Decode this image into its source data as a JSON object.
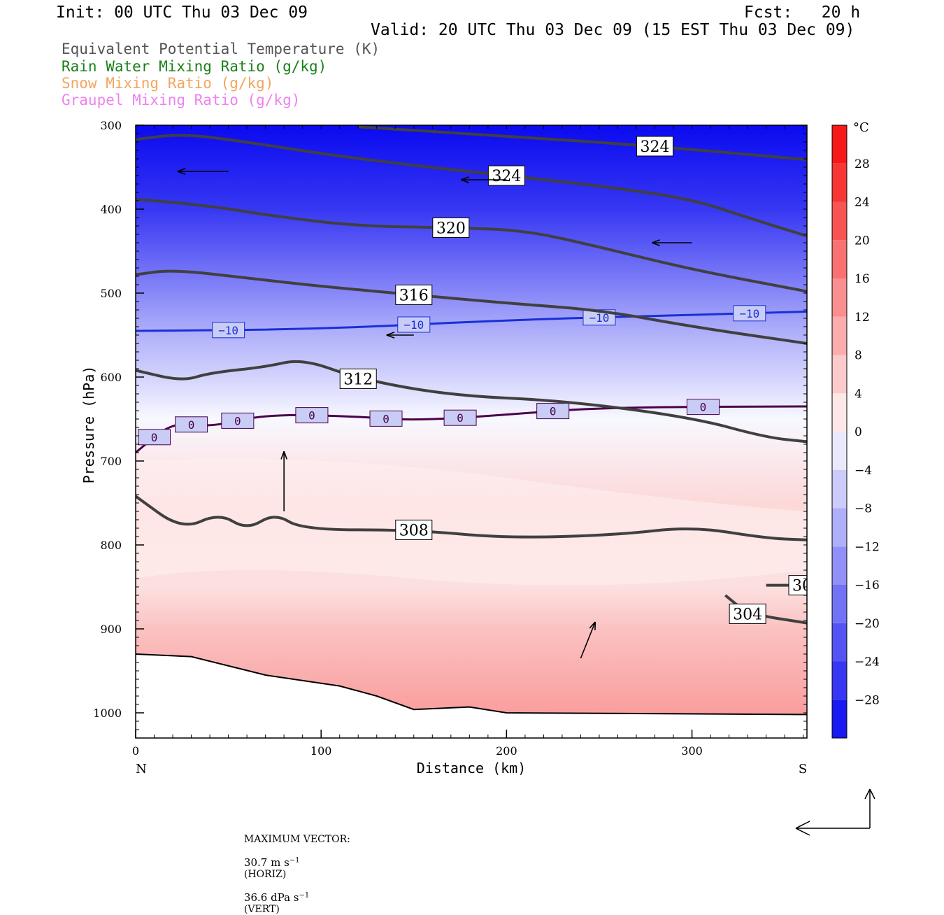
{
  "header": {
    "init": "Init: 00 UTC Thu 03 Dec 09",
    "fcst": "Fcst:   20 h",
    "valid": "Valid: 20 UTC Thu 03 Dec 09 (15 EST Thu 03 Dec 09)"
  },
  "legend": [
    {
      "label": "Equivalent Potential Temperature (K)",
      "color": "#555555"
    },
    {
      "label": "Rain Water Mixing Ratio (g/kg)",
      "color": "#1a7f1a"
    },
    {
      "label": "Snow Mixing Ratio (g/kg)",
      "color": "#f4a460"
    },
    {
      "label": "Graupel Mixing Ratio (g/kg)",
      "color": "#ee82ee"
    }
  ],
  "chart_data": {
    "type": "heatmap",
    "xlabel": "Distance (km)",
    "ylabel": "Pressure (hPa)",
    "xlim": [
      0,
      362
    ],
    "ylim": [
      1030,
      300
    ],
    "xticks": [
      "0",
      "100",
      "200",
      "300"
    ],
    "xtick_values": [
      0,
      100,
      200,
      300
    ],
    "yticks": [
      "300",
      "400",
      "500",
      "600",
      "700",
      "800",
      "900",
      "1000"
    ],
    "ytick_values": [
      300,
      400,
      500,
      600,
      700,
      800,
      900,
      1000
    ],
    "x_end_labels": {
      "left": "N",
      "right": "S"
    },
    "colorbar": {
      "unit": "°C",
      "labels": [
        "28",
        "24",
        "20",
        "16",
        "12",
        "8",
        "4",
        "0",
        "−4",
        "−8",
        "−12",
        "−16",
        "−20",
        "−24",
        "−28"
      ],
      "values": [
        28,
        24,
        20,
        16,
        12,
        8,
        4,
        0,
        -4,
        -8,
        -12,
        -16,
        -20,
        -24,
        -28
      ],
      "range": [
        -32,
        32
      ]
    },
    "temperature_field_approx": [
      {
        "pressure": 300,
        "temp_c": -32
      },
      {
        "pressure": 400,
        "temp_c": -26
      },
      {
        "pressure": 500,
        "temp_c": -15
      },
      {
        "pressure": 545,
        "temp_c": -10
      },
      {
        "pressure": 600,
        "temp_c": -5
      },
      {
        "pressure": 650,
        "temp_c": 0
      },
      {
        "pressure": 750,
        "temp_c": 4
      },
      {
        "pressure": 850,
        "temp_c": 3
      },
      {
        "pressure": 900,
        "temp_c": 7
      },
      {
        "pressure": 1000,
        "temp_c": 12
      }
    ],
    "theta_e_contours": [
      {
        "label": "324",
        "points": [
          [
            0,
            317
          ],
          [
            25,
            310
          ],
          [
            60,
            320
          ],
          [
            100,
            334
          ],
          [
            150,
            348
          ],
          [
            200,
            360
          ],
          [
            250,
            372
          ],
          [
            300,
            388
          ],
          [
            330,
            410
          ],
          [
            362,
            432
          ]
        ]
      },
      {
        "label": "324",
        "points": [
          [
            120,
            302
          ],
          [
            200,
            313
          ],
          [
            280,
            325
          ],
          [
            362,
            341
          ]
        ]
      },
      {
        "label": "320",
        "points": [
          [
            0,
            388
          ],
          [
            40,
            396
          ],
          [
            80,
            410
          ],
          [
            120,
            420
          ],
          [
            170,
            422
          ],
          [
            210,
            425
          ],
          [
            250,
            445
          ],
          [
            300,
            472
          ],
          [
            362,
            498
          ]
        ]
      },
      {
        "label": "316",
        "points": [
          [
            0,
            478
          ],
          [
            20,
            472
          ],
          [
            60,
            482
          ],
          [
            100,
            492
          ],
          [
            150,
            502
          ],
          [
            200,
            512
          ],
          [
            250,
            520
          ],
          [
            300,
            540
          ],
          [
            362,
            560
          ]
        ]
      },
      {
        "label": "312",
        "points": [
          [
            0,
            592
          ],
          [
            25,
            605
          ],
          [
            40,
            595
          ],
          [
            70,
            588
          ],
          [
            90,
            578
          ],
          [
            120,
            602
          ],
          [
            170,
            622
          ],
          [
            230,
            628
          ],
          [
            300,
            648
          ],
          [
            340,
            672
          ],
          [
            362,
            677
          ]
        ]
      },
      {
        "label": "308",
        "points": [
          [
            0,
            742
          ],
          [
            25,
            782
          ],
          [
            45,
            762
          ],
          [
            60,
            782
          ],
          [
            75,
            762
          ],
          [
            90,
            782
          ],
          [
            150,
            782
          ],
          [
            200,
            792
          ],
          [
            260,
            788
          ],
          [
            300,
            778
          ],
          [
            340,
            792
          ],
          [
            362,
            794
          ]
        ]
      },
      {
        "label": "304",
        "points": [
          [
            340,
            848
          ],
          [
            362,
            848
          ]
        ]
      },
      {
        "label": "304",
        "points": [
          [
            318,
            860
          ],
          [
            330,
            882
          ],
          [
            362,
            893
          ]
        ]
      }
    ],
    "isotherms": [
      {
        "label": "−10",
        "color": "#1a2fd6",
        "points": [
          [
            0,
            545
          ],
          [
            100,
            543
          ],
          [
            200,
            532
          ],
          [
            300,
            526
          ],
          [
            362,
            522
          ]
        ]
      },
      {
        "label": "0",
        "color": "#4b004b",
        "points": [
          [
            0,
            690
          ],
          [
            20,
            653
          ],
          [
            40,
            660
          ],
          [
            70,
            644
          ],
          [
            120,
            647
          ],
          [
            150,
            652
          ],
          [
            200,
            645
          ],
          [
            250,
            636
          ],
          [
            362,
            635
          ]
        ]
      }
    ],
    "terrain_surface": [
      [
        0,
        930
      ],
      [
        30,
        933
      ],
      [
        70,
        955
      ],
      [
        110,
        968
      ],
      [
        130,
        980
      ],
      [
        150,
        996
      ],
      [
        180,
        993
      ],
      [
        200,
        1000
      ],
      [
        362,
        1002
      ]
    ],
    "wind_vectors_sample": [
      {
        "x": 50,
        "p": 355,
        "u": -28,
        "w": 0
      },
      {
        "x": 200,
        "p": 365,
        "u": -25,
        "w": 0
      },
      {
        "x": 300,
        "p": 440,
        "u": -22,
        "w": 0
      },
      {
        "x": 150,
        "p": 550,
        "u": -15,
        "w": 0
      },
      {
        "x": 80,
        "p": 760,
        "u": 0,
        "w": 33
      },
      {
        "x": 240,
        "p": 935,
        "u": 8,
        "w": 20
      }
    ]
  },
  "footer": {
    "max_vector_label": "MAXIMUM VECTOR:",
    "horiz": "30.7 m s",
    "horiz_unit": "(HORIZ)",
    "vert": "36.6 dPa s",
    "vert_unit": "(VERT)",
    "exp": "−1"
  }
}
